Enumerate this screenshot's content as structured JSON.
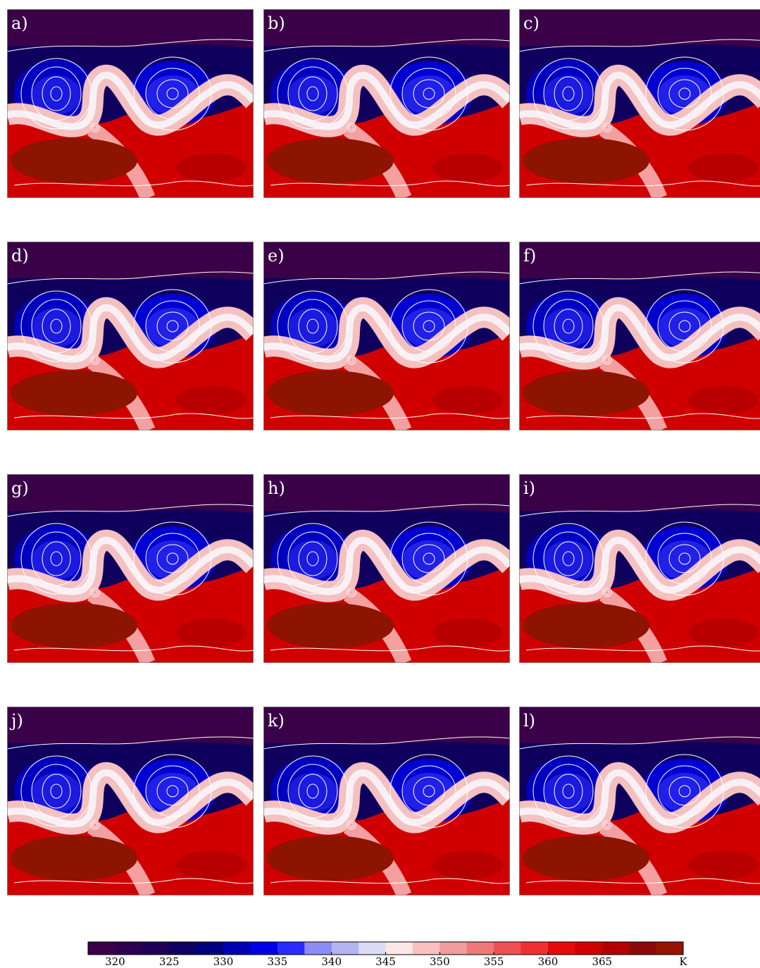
{
  "panels": [
    {
      "label": "a)"
    },
    {
      "label": "b)"
    },
    {
      "label": "c)"
    },
    {
      "label": "d)"
    },
    {
      "label": "e)"
    },
    {
      "label": "f)"
    },
    {
      "label": "g)"
    },
    {
      "label": "h)"
    },
    {
      "label": "i)"
    },
    {
      "label": "j)"
    },
    {
      "label": "k)"
    },
    {
      "label": "l)"
    }
  ],
  "colorbar": {
    "colors": [
      "#3b0048",
      "#2d004f",
      "#1f0058",
      "#0f0063",
      "#00007e",
      "#0000b4",
      "#0000e6",
      "#2a2aff",
      "#8c8cf5",
      "#b4b4f0",
      "#dcdcf8",
      "#fde6e6",
      "#f8c0c0",
      "#f09c9c",
      "#f07878",
      "#f05050",
      "#f03030",
      "#e60a0a",
      "#d20000",
      "#b40000",
      "#8e0a0a",
      "#961400"
    ],
    "lim": [
      317.5,
      372.5
    ],
    "ticks": [
      320,
      325,
      330,
      335,
      340,
      345,
      350,
      355,
      360,
      365
    ],
    "unit": "K"
  }
}
